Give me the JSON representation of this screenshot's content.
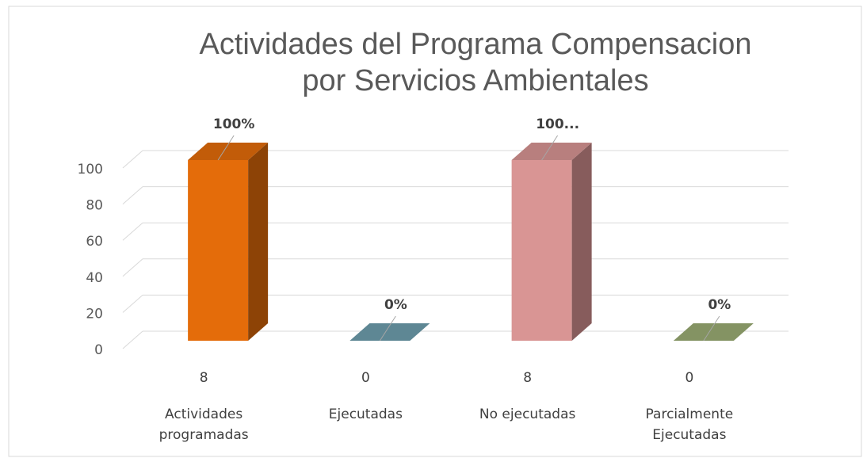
{
  "chart_data": {
    "type": "bar3d",
    "title": "Actividades del Programa Compensacion por Servicios Ambientales",
    "categories": [
      "Actividades programadas",
      "Ejecutadas",
      "No ejecutadas",
      "Parcialmente Ejecutadas"
    ],
    "category_counts": [
      "8",
      "0",
      "8",
      "0"
    ],
    "values": [
      100,
      0,
      100,
      0
    ],
    "value_labels": [
      "100%",
      "0%",
      "100...",
      "0%"
    ],
    "colors": [
      "#e46c0a",
      "#6f9fae",
      "#d99594",
      "#9bad74"
    ],
    "ylim": [
      0,
      100
    ],
    "yticks": [
      0,
      20,
      40,
      60,
      80,
      100
    ],
    "grid": true
  }
}
